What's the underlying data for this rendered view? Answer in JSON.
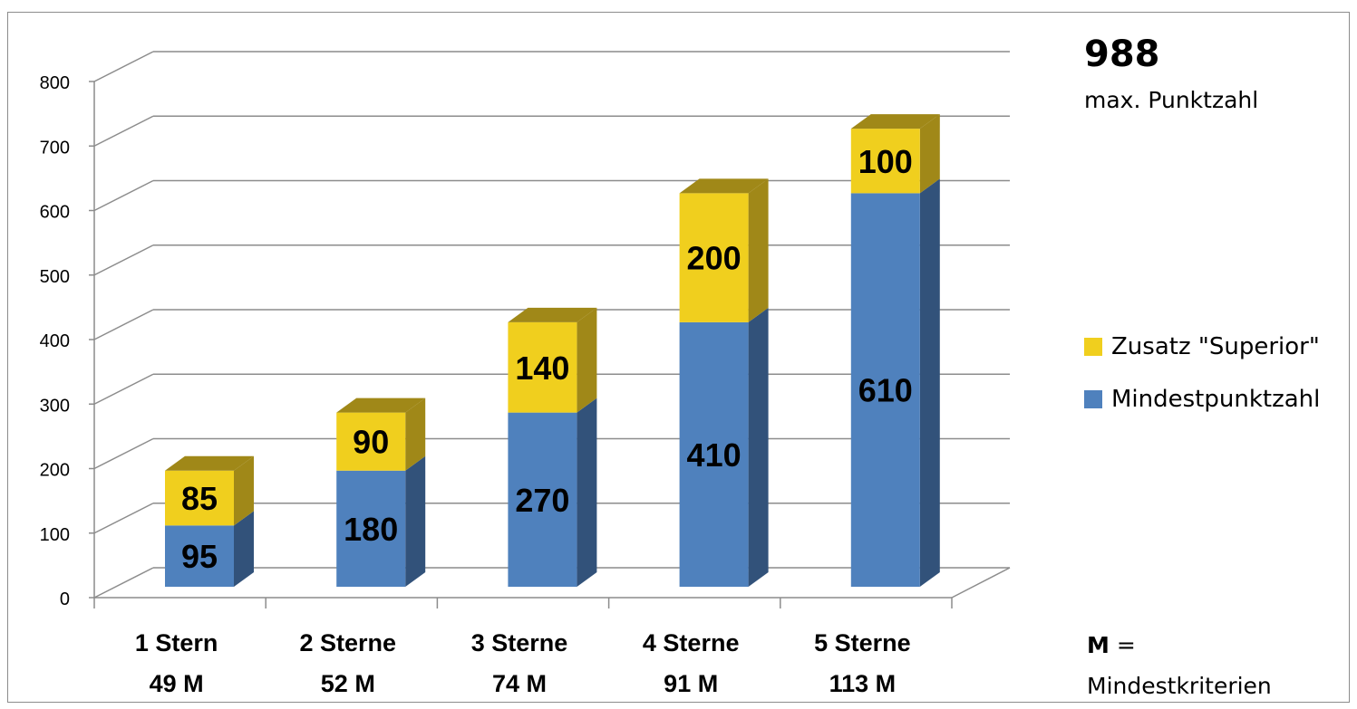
{
  "chart_data": {
    "type": "bar",
    "stacked": true,
    "categories": [
      [
        "1 Stern",
        "49 M"
      ],
      [
        "2 Sterne",
        "52 M"
      ],
      [
        "3 Sterne",
        "74 M"
      ],
      [
        "4 Sterne",
        "91 M"
      ],
      [
        "5 Sterne",
        "113 M"
      ]
    ],
    "series": [
      {
        "name": "Mindestpunktzahl",
        "values": [
          95,
          180,
          270,
          410,
          610
        ],
        "color": "#4f81bd",
        "side_color": "#32527a"
      },
      {
        "name": "Zusatz \"Superior\"",
        "values": [
          85,
          90,
          140,
          200,
          100
        ],
        "color": "#f0cf1e",
        "side_color": "#a08818"
      }
    ],
    "ylim": [
      0,
      800
    ],
    "yticks": [
      0,
      100,
      200,
      300,
      400,
      500,
      600,
      700,
      800
    ],
    "grid": true,
    "legend_position": "right"
  },
  "side_panel": {
    "max_value": "988",
    "max_label": "max. Punktzahl",
    "note_key": "M",
    "note_eq": "=",
    "note_text": "Mindestkriterien"
  }
}
